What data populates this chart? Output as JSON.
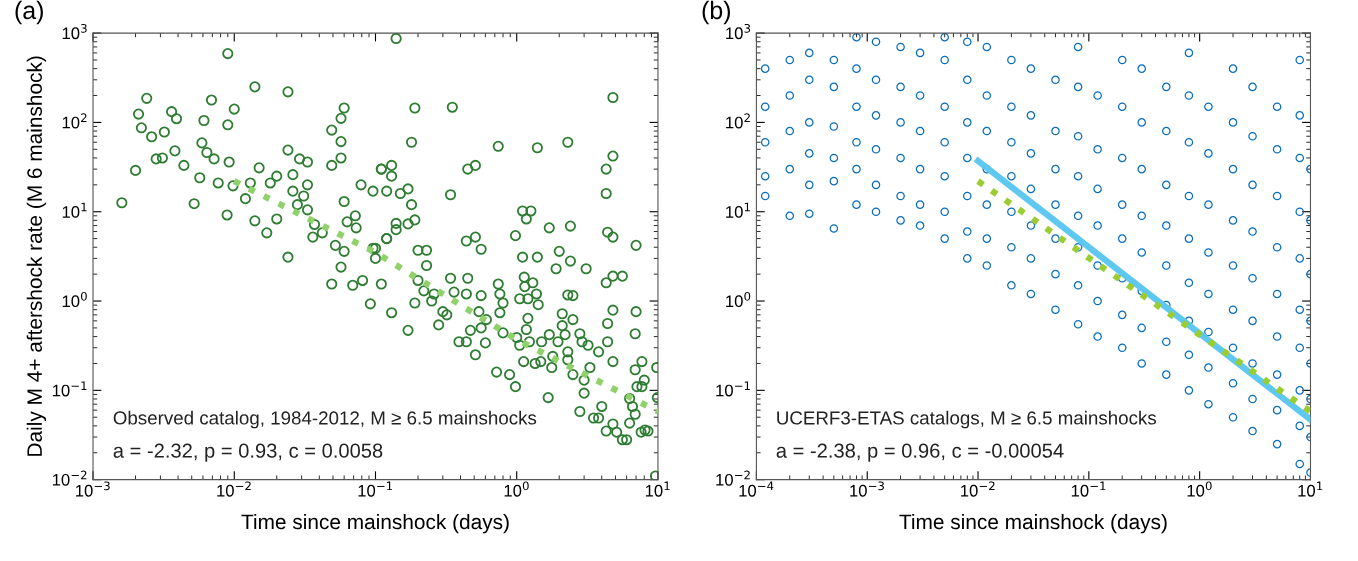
{
  "chart_data": [
    {
      "type": "scatter",
      "title": "(a)",
      "xlabel": "Time since mainshock (days)",
      "ylabel": "Daily M 4+ aftershock rate (M 6 mainshock)",
      "log": "xy",
      "xlim": [
        0.001,
        10
      ],
      "ylim": [
        0.01,
        1000
      ],
      "xticks": [
        {
          "value": 0.001,
          "label": "10$^{−3}$"
        },
        {
          "value": 0.01,
          "label": "10$^{−2}$"
        },
        {
          "value": 0.1,
          "label": "10$^{−1}$"
        },
        {
          "value": 1,
          "label": "10$^{0}$"
        },
        {
          "value": 10,
          "label": "10$^{1}$"
        }
      ],
      "yticks": [
        {
          "value": 0.01,
          "label": "10$^{−2}$"
        },
        {
          "value": 0.1,
          "label": "10$^{−1}$"
        },
        {
          "value": 1,
          "label": "10$^{0}$"
        },
        {
          "value": 10,
          "label": "10$^{1}$"
        },
        {
          "value": 100,
          "label": "10$^{2}$"
        },
        {
          "value": 1000,
          "label": "10$^{3}$"
        }
      ],
      "annotations": [
        "Observed catalog, 1984-2012, M ≥ 6.5 mainshocks",
        "a = -2.32, p = 0.93, c = 0.0058"
      ],
      "series": [
        {
          "marker": "circle",
          "color": "#2e7d32",
          "x": [
            0.0016,
            0.002,
            0.0021,
            0.0024,
            0.0022,
            0.0026,
            0.0028,
            0.0031,
            0.0036,
            0.0039,
            0.0038,
            0.0032,
            0.0044,
            0.0052,
            0.0057,
            0.0061,
            0.0059,
            0.0064,
            0.0069,
            0.0072,
            0.0077,
            0.009,
            0.009,
            0.0092,
            0.0089,
            0.0098,
            0.01,
            0.012,
            0.013,
            0.014,
            0.015,
            0.014,
            0.017,
            0.018,
            0.02,
            0.02,
            0.024,
            0.024,
            0.024,
            0.026,
            0.026,
            0.029,
            0.033,
            0.028,
            0.031,
            0.033,
            0.033,
            0.037,
            0.036,
            0.042,
            0.049,
            0.049,
            0.057,
            0.06,
            0.057,
            0.057,
            0.06,
            0.052,
            0.06,
            0.049,
            0.057,
            0.063,
            0.072,
            0.073,
            0.069,
            0.081,
            0.079,
            0.092,
            0.096,
            0.11,
            0.1,
            0.11,
            0.12,
            0.096,
            0.14,
            4.8,
            0.19,
            0.35,
            0.18,
            0.74,
            1.4,
            2.3,
            4.3,
            4.8,
            4.3,
            0.11,
            0.13,
            0.13,
            0.45,
            0.51,
            0.12,
            0.15,
            0.17,
            0.18,
            0.34,
            1.1,
            1.26,
            1.17,
            1.7,
            2.4,
            0.98,
            4.4,
            4.8,
            7.0,
            0.14,
            0.14,
            0.19,
            0.17,
            0.12,
            0.44,
            0.51,
            0.56,
            0.1,
            0.2,
            0.23,
            0.23,
            0.13,
            0.17,
            0.19,
            0.2,
            0.22,
            0.25,
            0.26,
            0.28,
            0.3,
            0.32,
            0.34,
            0.36,
            0.45,
            0.44,
            0.39,
            0.44,
            0.47,
            0.51,
            0.54,
            0.56,
            0.56,
            0.61,
            0.6,
            0.72,
            0.76,
            0.74,
            0.76,
            0.8,
            0.8,
            0.89,
            0.98,
            1.0,
            1.05,
            1.1,
            1.13,
            1.14,
            1.05,
            1.2,
            1.2,
            1.17,
            1.23,
            1.12,
            1.3,
            1.4,
            1.38,
            1.42,
            1.35,
            1.48,
            1.5,
            1.7,
            1.67,
            1.8,
            1.77,
            1.9,
            1.96,
            2.0,
            2.1,
            2.1,
            2.2,
            2.3,
            2.3,
            2.3,
            2.4,
            2.5,
            2.5,
            2.5,
            2.8,
            2.9,
            2.8,
            3.0,
            3.1,
            3.0,
            3.2,
            3.3,
            3.5,
            3.8,
            3.8,
            4.0,
            4.3,
            4.4,
            4.4,
            4.8,
            4.8,
            4.8,
            5.6,
            4.3,
            5.1,
            5.6,
            6.0,
            4.8,
            6.3,
            6.3,
            6.6,
            6.9,
            6.9,
            7.0,
            6.9,
            7.1,
            7.7,
            7.7,
            8.0,
            7.6,
            8.1,
            8.5,
            9.8,
            9.6,
            9.9
          ],
          "values": [
            12.6,
            29,
            124,
            186,
            87,
            69,
            39,
            40,
            132,
            110,
            48,
            78,
            33,
            12.3,
            24,
            105,
            59,
            46,
            178,
            39,
            21,
            590,
            94,
            36,
            9.2,
            19.5,
            141,
            14,
            21,
            250,
            31,
            7.9,
            5.8,
            21,
            25,
            8.3,
            220,
            49,
            3.1,
            26,
            17,
            39,
            36,
            12,
            15,
            20,
            10.5,
            7.2,
            5.2,
            5.8,
            82,
            33,
            111,
            145,
            61,
            40,
            13,
            4.2,
            3.6,
            1.55,
            2.4,
            7.7,
            9,
            6.6,
            1.5,
            1.7,
            20,
            0.93,
            17,
            30,
            3.0,
            1.55,
            5.0,
            3.9,
            870,
            190,
            145,
            148,
            60,
            54,
            52,
            60,
            30,
            42,
            16,
            30,
            33,
            25,
            30,
            33,
            17,
            16,
            18,
            12,
            15.5,
            10.2,
            10.2,
            8.3,
            6.6,
            6.9,
            5.4,
            5.9,
            5.2,
            4.2,
            7.4,
            6.3,
            8.1,
            7.3,
            5.0,
            4.7,
            5.2,
            3.8,
            3.9,
            3.7,
            3.7,
            2.5,
            0.74,
            0.47,
            0.95,
            1.7,
            1.3,
            1.0,
            1.2,
            0.54,
            0.76,
            0.7,
            1.8,
            1.26,
            1.8,
            1.2,
            0.35,
            0.35,
            0.47,
            0.25,
            0.76,
            0.5,
            1.15,
            0.62,
            0.34,
            0.16,
            1.2,
            1.55,
            0.74,
            0.44,
            0.95,
            0.15,
            0.11,
            0.39,
            0.32,
            3.1,
            1.85,
            1.45,
            1.06,
            1.06,
            0.64,
            0.48,
            0.35,
            0.21,
            1.6,
            3.1,
            1.2,
            0.91,
            0.2,
            0.21,
            0.35,
            0.42,
            0.083,
            0.24,
            0.18,
            2.3,
            0.35,
            3.6,
            0.72,
            0.53,
            0.42,
            1.17,
            0.27,
            0.22,
            2.8,
            1.15,
            0.62,
            0.15,
            0.43,
            0.35,
            0.058,
            0.093,
            2.3,
            0.13,
            0.32,
            0.18,
            0.049,
            0.27,
            0.049,
            0.066,
            1.6,
            0.35,
            0.56,
            0.21,
            0.79,
            1.9,
            1.9,
            0.035,
            0.034,
            0.028,
            0.028,
            0.042,
            0.043,
            0.081,
            0.066,
            0.054,
            0.43,
            0.76,
            0.17,
            0.11,
            0.11,
            0.21,
            0.13,
            0.034,
            0.036,
            0.035,
            0.18,
            0.011,
            0.083
          ]
        },
        {
          "type": "line",
          "line_style": "dotted",
          "color": "#8fd16a",
          "x": [
            0.01,
            0.1,
            1,
            10
          ],
          "values": [
            22,
            3.5,
            0.37,
            0.058
          ]
        }
      ]
    },
    {
      "type": "scatter",
      "title": "(b)",
      "xlabel": "Time since mainshock (days)",
      "log": "xy",
      "xlim": [
        0.0001,
        10
      ],
      "ylim": [
        0.01,
        1000
      ],
      "xticks": [
        {
          "value": 0.0001,
          "label": "10$^{−4}$"
        },
        {
          "value": 0.001,
          "label": "10$^{−3}$"
        },
        {
          "value": 0.01,
          "label": "10$^{−2}$"
        },
        {
          "value": 0.1,
          "label": "10$^{−1}$"
        },
        {
          "value": 1,
          "label": "10$^{0}$"
        },
        {
          "value": 10,
          "label": "10$^{1}$"
        }
      ],
      "yticks": [
        {
          "value": 0.01,
          "label": "10$^{−2}$"
        },
        {
          "value": 0.1,
          "label": "10$^{−1}$"
        },
        {
          "value": 1,
          "label": "10$^{0}$"
        },
        {
          "value": 10,
          "label": "10$^{1}$"
        },
        {
          "value": 100,
          "label": "10$^{2}$"
        },
        {
          "value": 1000,
          "label": "10$^{3}$"
        }
      ],
      "annotations": [
        "UCERF3-ETAS catalogs, M ≥ 6.5 mainshocks",
        "a = -2.38, p = 0.96, c = -0.00054"
      ],
      "series": [
        {
          "marker": "circle",
          "color": "#0a6ebd",
          "x": [
            0.00012,
            0.00012,
            0.00012,
            0.00012,
            0.00012,
            0.0002,
            0.0002,
            0.0002,
            0.0002,
            0.0002,
            0.0003,
            0.0003,
            0.0003,
            0.0003,
            0.0003,
            0.0003,
            0.0005,
            0.0005,
            0.0005,
            0.0005,
            0.0005,
            0.0005,
            0.0008,
            0.0008,
            0.0008,
            0.0008,
            0.0008,
            0.0008,
            0.0012,
            0.0012,
            0.0012,
            0.0012,
            0.0012,
            0.0012,
            0.002,
            0.002,
            0.002,
            0.002,
            0.002,
            0.002,
            0.003,
            0.003,
            0.003,
            0.003,
            0.003,
            0.003,
            0.005,
            0.005,
            0.005,
            0.005,
            0.005,
            0.005,
            0.005,
            0.008,
            0.008,
            0.008,
            0.008,
            0.008,
            0.008,
            0.008,
            0.012,
            0.012,
            0.012,
            0.012,
            0.012,
            0.012,
            0.012,
            0.02,
            0.02,
            0.02,
            0.02,
            0.02,
            0.02,
            0.02,
            0.03,
            0.03,
            0.03,
            0.03,
            0.03,
            0.03,
            0.03,
            0.05,
            0.05,
            0.05,
            0.05,
            0.05,
            0.05,
            0.05,
            0.08,
            0.08,
            0.08,
            0.08,
            0.08,
            0.08,
            0.08,
            0.08,
            0.12,
            0.12,
            0.12,
            0.12,
            0.12,
            0.12,
            0.12,
            0.2,
            0.2,
            0.2,
            0.2,
            0.2,
            0.2,
            0.2,
            0.2,
            0.3,
            0.3,
            0.3,
            0.3,
            0.3,
            0.3,
            0.3,
            0.3,
            0.5,
            0.5,
            0.5,
            0.5,
            0.5,
            0.5,
            0.5,
            0.5,
            0.8,
            0.8,
            0.8,
            0.8,
            0.8,
            0.8,
            0.8,
            0.8,
            0.8,
            1.2,
            1.2,
            1.2,
            1.2,
            1.2,
            1.2,
            1.2,
            1.2,
            2,
            2,
            2,
            2,
            2,
            2,
            2,
            2,
            2,
            3,
            3,
            3,
            3,
            3,
            3,
            3,
            3,
            3,
            5,
            5,
            5,
            5,
            5,
            5,
            5,
            5,
            5,
            8,
            8,
            8,
            8,
            8,
            8,
            8,
            8,
            8,
            8,
            10,
            10,
            10,
            10,
            10,
            10,
            10,
            10
          ],
          "values": [
            15,
            25,
            60,
            150,
            400,
            9,
            30,
            80,
            200,
            500,
            9.5,
            20,
            45,
            100,
            300,
            600,
            6.5,
            22,
            40,
            90,
            250,
            500,
            12,
            30,
            60,
            150,
            400,
            900,
            10,
            20,
            50,
            120,
            300,
            800,
            8,
            15,
            40,
            100,
            250,
            700,
            7,
            12,
            30,
            80,
            200,
            600,
            5,
            10,
            25,
            60,
            150,
            500,
            900,
            3,
            6,
            15,
            40,
            100,
            300,
            800,
            2.5,
            5,
            12,
            30,
            80,
            200,
            700,
            1.5,
            4,
            10,
            25,
            60,
            150,
            500,
            1.2,
            3,
            7,
            18,
            45,
            120,
            400,
            0.8,
            2,
            5,
            12,
            30,
            80,
            300,
            0.55,
            1.5,
            4,
            9,
            25,
            70,
            250,
            700,
            0.4,
            1,
            2.5,
            7,
            18,
            50,
            200,
            0.3,
            0.7,
            1.8,
            5,
            12,
            40,
            150,
            500,
            0.2,
            0.5,
            1.3,
            3.5,
            9,
            30,
            100,
            400,
            0.15,
            0.35,
            0.9,
            2.5,
            7,
            20,
            80,
            250,
            0.1,
            0.25,
            0.6,
            1.6,
            5,
            15,
            60,
            200,
            600,
            0.07,
            0.18,
            0.45,
            1.2,
            3.5,
            12,
            45,
            150,
            0.05,
            0.12,
            0.3,
            0.8,
            2.5,
            8,
            30,
            100,
            400,
            0.035,
            0.08,
            0.2,
            0.6,
            1.8,
            6,
            20,
            70,
            250,
            0.025,
            0.06,
            0.15,
            0.4,
            1.2,
            4,
            15,
            50,
            150,
            0.015,
            0.04,
            0.1,
            0.3,
            0.8,
            3,
            10,
            40,
            120,
            500,
            0.012,
            0.03,
            0.08,
            0.2,
            0.6,
            2,
            8,
            30
          ]
        },
        {
          "type": "line",
          "line_style": "solid",
          "color": "#5ec8f0",
          "x": [
            0.01,
            10
          ],
          "values": [
            37,
            0.047
          ]
        },
        {
          "type": "line",
          "line_style": "dotted",
          "color": "#9acd32",
          "x": [
            0.01,
            10
          ],
          "values": [
            22,
            0.058
          ]
        }
      ]
    }
  ]
}
